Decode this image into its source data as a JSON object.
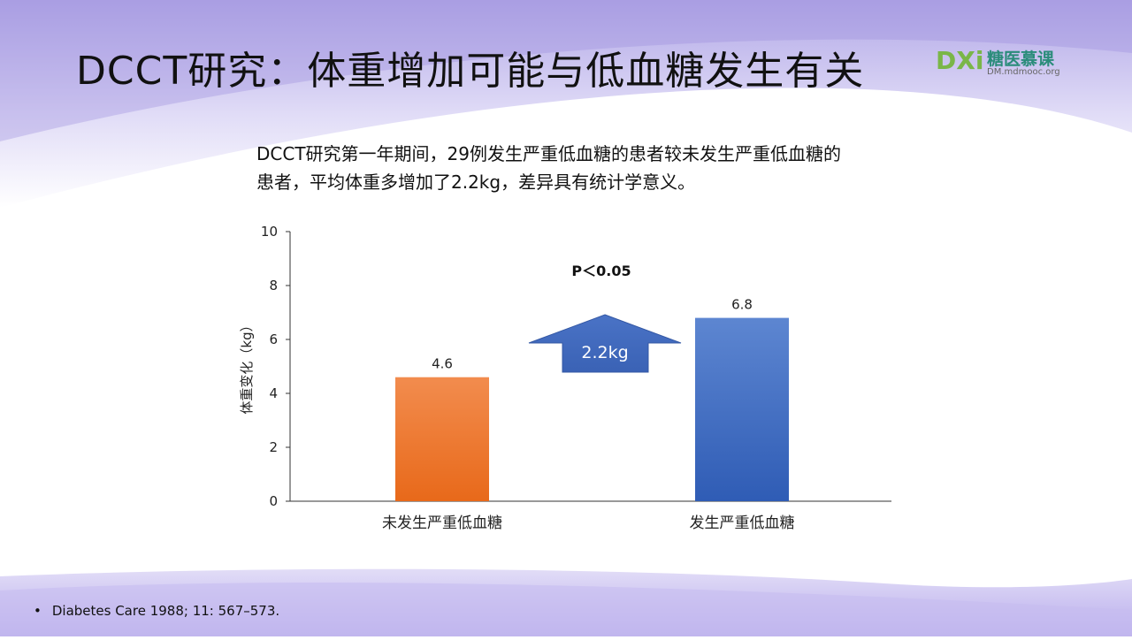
{
  "title": "DCCT研究：体重增加可能与低血糖发生有关",
  "logo": {
    "mark": "DXi",
    "name": "糖医慕课",
    "url": "DM.mdmooc.org"
  },
  "subtitle": {
    "line1": "DCCT研究第一年期间，29例发生严重低血糖的患者较未发生严重低血糖的",
    "line2": "患者，平均体重多增加了2.2kg，差异具有统计学意义。"
  },
  "footnote": {
    "bullet": "•",
    "text": "Diabetes Care 1988; 11: 567–573."
  },
  "chart_data": {
    "type": "bar",
    "categories": [
      "未发生严重低血糖",
      "发生严重低血糖"
    ],
    "values": [
      4.6,
      6.8
    ],
    "value_labels": [
      "4.6",
      "6.8"
    ],
    "ylabel": "体重变化（kg）",
    "xlabel": "",
    "ylim": [
      0,
      10
    ],
    "yticks": [
      0,
      2,
      4,
      6,
      8,
      10
    ],
    "grid": false,
    "colors": [
      "#ef7a28",
      "#3f6fc5"
    ],
    "annotations": {
      "p_value": "P＜0.05",
      "difference": "2.2kg"
    }
  }
}
